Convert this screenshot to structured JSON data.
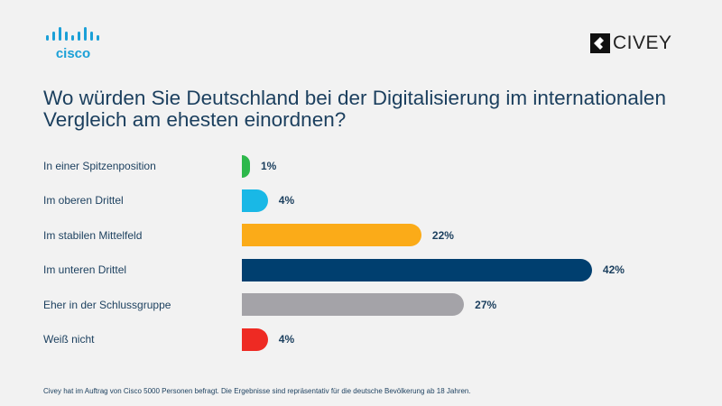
{
  "logos": {
    "left": "cisco",
    "right": "CIVEY"
  },
  "chart_data": {
    "type": "bar",
    "orientation": "horizontal",
    "title": "Wo würden Sie Deutschland bei der Digitalisierung im internationalen Vergleich am ehesten einordnen?",
    "categories": [
      "In einer Spitzenposition",
      "Im oberen Drittel",
      "Im stabilen Mittelfeld",
      "Im unteren Drittel",
      "Eher in der Schlussgruppe",
      "Weiß nicht"
    ],
    "values": [
      1,
      4,
      22,
      42,
      27,
      4
    ],
    "value_labels": [
      "1%",
      "4%",
      "22%",
      "42%",
      "27%",
      "4%"
    ],
    "colors": [
      "#2db84b",
      "#19b8e6",
      "#fbab18",
      "#003f6f",
      "#a4a3a8",
      "#ee2a23"
    ],
    "unit": "%",
    "grid": false
  },
  "footnote": "Civey hat im Auftrag von Cisco 5000 Personen befragt. Die Ergebnisse sind repräsentativ für die deutsche Bevölkerung ab 18 Jahren.",
  "brand_colors": {
    "cisco": "#1ba0d7",
    "text": "#1b3f5e"
  }
}
